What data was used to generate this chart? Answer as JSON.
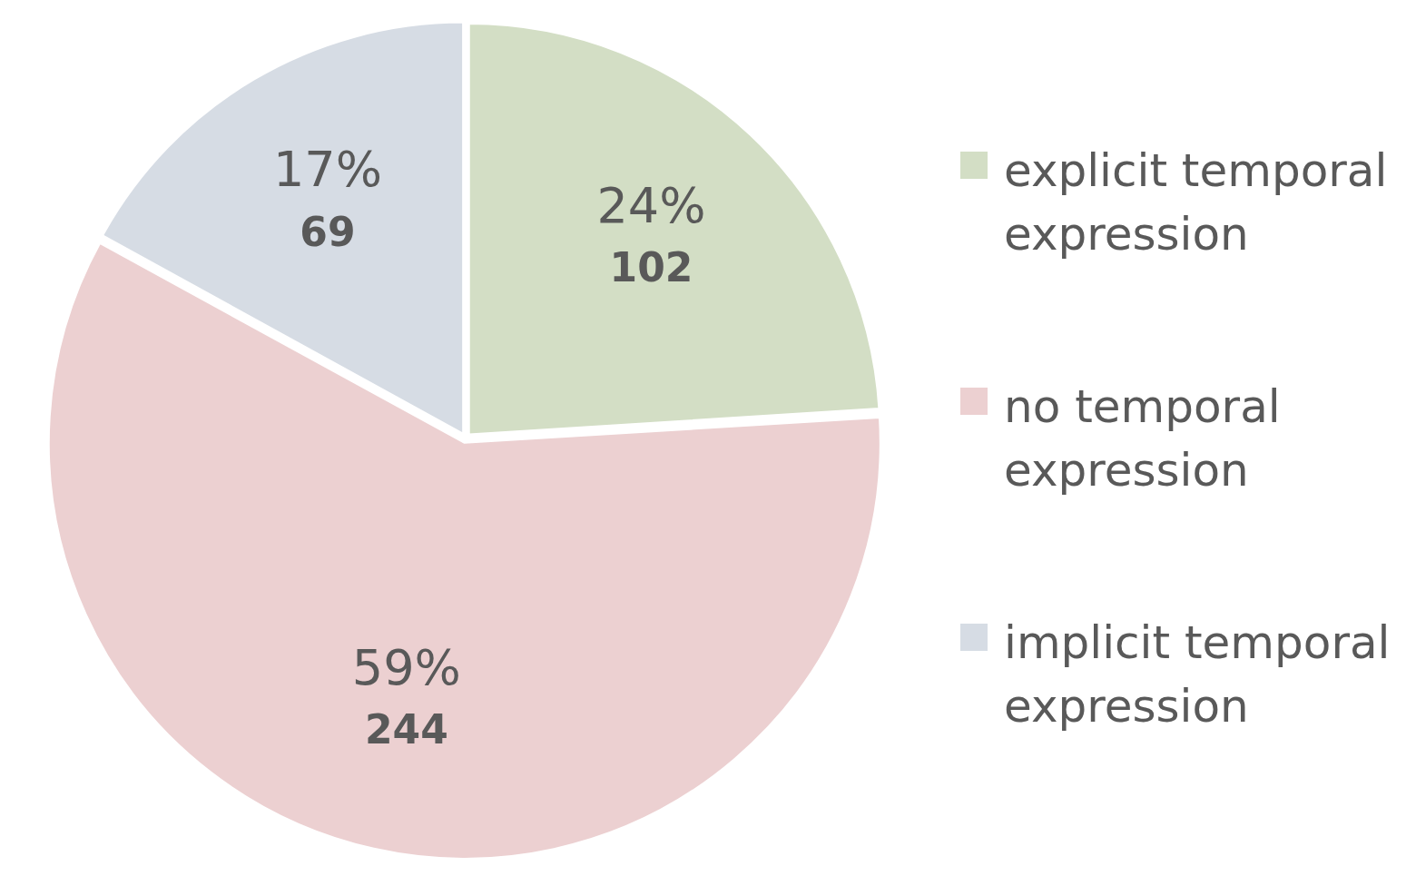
{
  "chart_data": {
    "type": "pie",
    "categories": [
      "explicit temporal expression",
      "no temporal expression",
      "implicit temporal expression"
    ],
    "values": [
      24,
      59,
      17
    ],
    "colors": [
      "#d3dec5",
      "#ecd0d1",
      "#d6dce4"
    ],
    "value_labels": [
      "24%\n102",
      "59%\n244",
      "17%\n69"
    ],
    "legend": "right"
  }
}
